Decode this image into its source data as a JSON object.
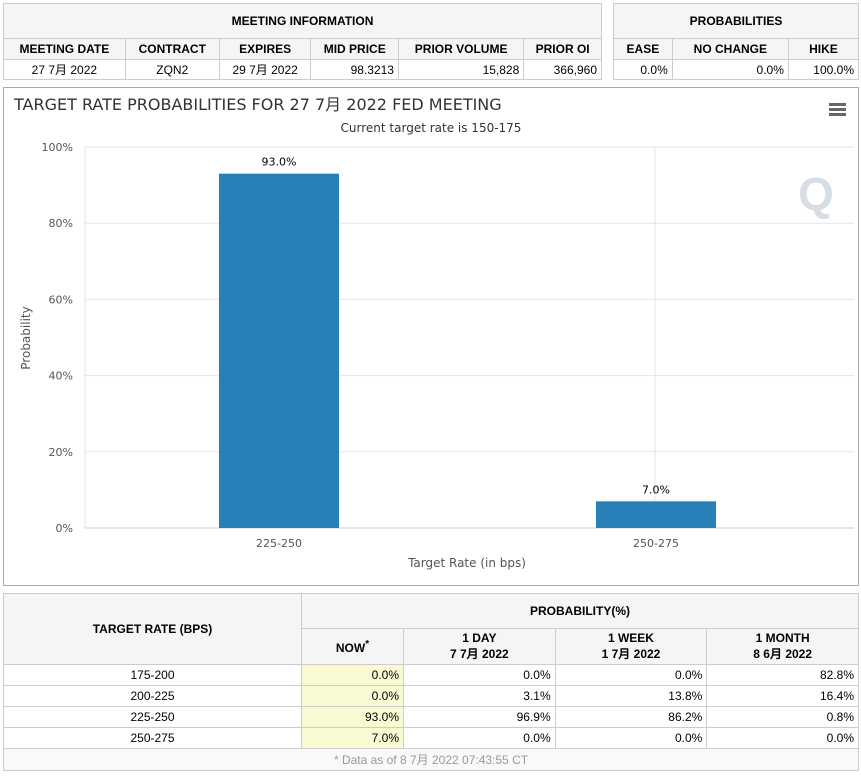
{
  "meeting_info": {
    "title": "MEETING INFORMATION",
    "headers": [
      "MEETING DATE",
      "CONTRACT",
      "EXPIRES",
      "MID PRICE",
      "PRIOR VOLUME",
      "PRIOR OI"
    ],
    "values": [
      "27 7月 2022",
      "ZQN2",
      "29 7月 2022",
      "98.3213",
      "15,828",
      "366,960"
    ]
  },
  "probabilities": {
    "title": "PROBABILITIES",
    "headers": [
      "EASE",
      "NO CHANGE",
      "HIKE"
    ],
    "values": [
      "0.0%",
      "0.0%",
      "100.0%"
    ]
  },
  "chart_data": {
    "type": "bar",
    "title": "TARGET RATE PROBABILITIES FOR 27 7月 2022 FED MEETING",
    "subtitle": "Current target rate is 150-175",
    "categories": [
      "225-250",
      "250-275"
    ],
    "values": [
      93.0,
      7.0
    ],
    "data_labels": [
      "93.0%",
      "7.0%"
    ],
    "xlabel": "Target Rate (in bps)",
    "ylabel": "Probability",
    "ylim": [
      0,
      100
    ],
    "yticks": [
      "0%",
      "20%",
      "40%",
      "60%",
      "80%",
      "100%"
    ],
    "color": "#2980b9",
    "grid": true
  },
  "prob_table": {
    "col_header": "TARGET RATE (BPS)",
    "group_header": "PROBABILITY(%)",
    "columns": [
      {
        "l1": "NOW",
        "l2": "*"
      },
      {
        "l1": "1 DAY",
        "l2": "7 7月 2022"
      },
      {
        "l1": "1 WEEK",
        "l2": "1 7月 2022"
      },
      {
        "l1": "1 MONTH",
        "l2": "8 6月 2022"
      }
    ],
    "rows": [
      [
        "175-200",
        "0.0%",
        "0.0%",
        "0.0%",
        "82.8%"
      ],
      [
        "200-225",
        "0.0%",
        "3.1%",
        "13.8%",
        "16.4%"
      ],
      [
        "225-250",
        "93.0%",
        "96.9%",
        "86.2%",
        "0.8%"
      ],
      [
        "250-275",
        "7.0%",
        "0.0%",
        "0.0%",
        "0.0%"
      ]
    ],
    "footnote": "* Data as of 8 7月 2022 07:43:55 CT"
  }
}
